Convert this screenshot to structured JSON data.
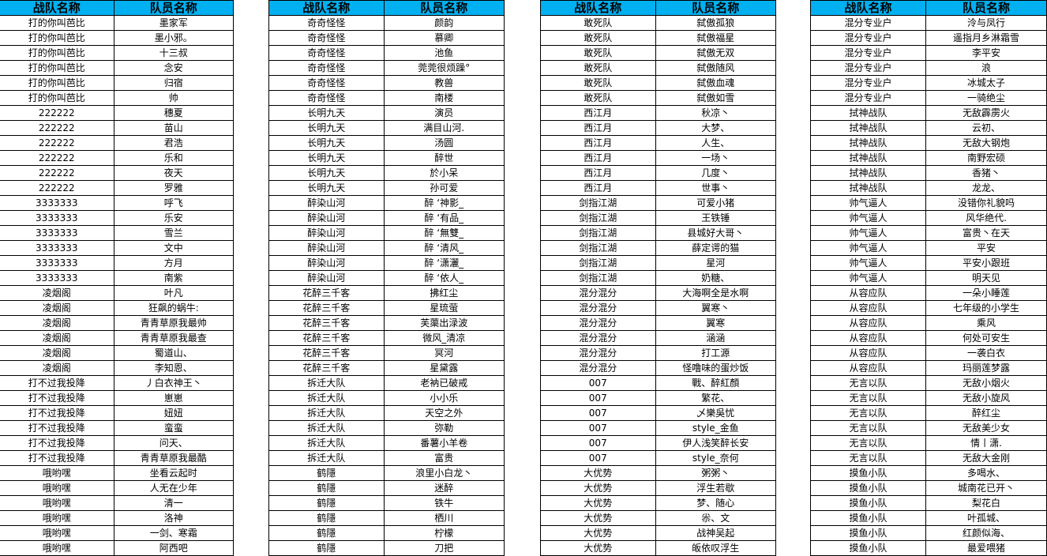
{
  "colors": {
    "header_bg": "#00B0F0",
    "grid": "#000000"
  },
  "headers": {
    "team": "战队名称",
    "member": "队员名称"
  },
  "tables": [
    {
      "rows": [
        [
          "打的你叫芭比",
          "墨家军"
        ],
        [
          "打的你叫芭比",
          "墨小邪。"
        ],
        [
          "打的你叫芭比",
          "十三叔"
        ],
        [
          "打的你叫芭比",
          "念安"
        ],
        [
          "打的你叫芭比",
          "归宿"
        ],
        [
          "打的你叫芭比",
          "帅"
        ],
        [
          "222222",
          "穗夏"
        ],
        [
          "222222",
          "苗山"
        ],
        [
          "222222",
          "君浩"
        ],
        [
          "222222",
          "乐和"
        ],
        [
          "222222",
          "夜天"
        ],
        [
          "222222",
          "罗雅"
        ],
        [
          "3333333",
          "呼飞"
        ],
        [
          "3333333",
          "乐安"
        ],
        [
          "3333333",
          "雪兰"
        ],
        [
          "3333333",
          "文中"
        ],
        [
          "3333333",
          "方月"
        ],
        [
          "3333333",
          "南紫"
        ],
        [
          "凌烟阁",
          "叶凡"
        ],
        [
          "凌烟阁",
          "狂飙的蜗牛:"
        ],
        [
          "凌烟阁",
          "青青草原我最帅"
        ],
        [
          "凌烟阁",
          "青青草原我最查"
        ],
        [
          "凌烟阁",
          "蜀道山、"
        ],
        [
          "凌烟阁",
          "李知恩、"
        ],
        [
          "打不过我投降",
          "丿白衣神王丶"
        ],
        [
          "打不过我投降",
          "崽崽"
        ],
        [
          "打不过我投降",
          "妞妞"
        ],
        [
          "打不过我投降",
          "蛮蛮"
        ],
        [
          "打不过我投降",
          "问天、"
        ],
        [
          "打不过我投降",
          "青青草原我最酷"
        ],
        [
          "哦哟嘿",
          "坐看云起时"
        ],
        [
          "哦哟嘿",
          "人无在少年"
        ],
        [
          "哦哟嘿",
          "清一"
        ],
        [
          "哦哟嘿",
          "洛神"
        ],
        [
          "哦哟嘿",
          "一剑、寒霜"
        ],
        [
          "哦哟嘿",
          "阿西吧"
        ]
      ]
    },
    {
      "rows": [
        [
          "奇奇怪怪",
          "颜韵"
        ],
        [
          "奇奇怪怪",
          "慕卿"
        ],
        [
          "奇奇怪怪",
          "池鱼"
        ],
        [
          "奇奇怪怪",
          "莞莞很烦躁°"
        ],
        [
          "奇奇怪怪",
          "教兽"
        ],
        [
          "奇奇怪怪",
          "南楼"
        ],
        [
          "长明九天",
          "演员"
        ],
        [
          "长明九天",
          "满目山河."
        ],
        [
          "长明九天",
          "汤圆"
        ],
        [
          "长明九天",
          "醉世"
        ],
        [
          "长明九天",
          "於小呆"
        ],
        [
          "长明九天",
          "孙可爱"
        ],
        [
          "醉染山河",
          "醉  ‘神影_"
        ],
        [
          "醉染山河",
          "醉  ‘有品_"
        ],
        [
          "醉染山河",
          "醉  ‘無雙_"
        ],
        [
          "醉染山河",
          "醉  ‘清风_"
        ],
        [
          "醉染山河",
          "醉  ‘潇灑_"
        ],
        [
          "醉染山河",
          "醉  ‘依人_"
        ],
        [
          "花醉三千客",
          "拂红尘"
        ],
        [
          "花醉三千客",
          "星琉萤"
        ],
        [
          "花醉三千客",
          "芙蕖出渌波"
        ],
        [
          "花醉三千客",
          "微风_清凉"
        ],
        [
          "花醉三千客",
          "冥河"
        ],
        [
          "花醉三千客",
          "星黛露"
        ],
        [
          "拆迁大队",
          "老衲已破戒"
        ],
        [
          "拆迁大队",
          "小小乐"
        ],
        [
          "拆迁大队",
          "天空之外"
        ],
        [
          "拆迁大队",
          "弥勒"
        ],
        [
          "拆迁大队",
          "番薯小羊卷"
        ],
        [
          "拆迁大队",
          "富贵"
        ],
        [
          "鹤隱",
          "浪里小白龙丶"
        ],
        [
          "鹤隱",
          "迷醉"
        ],
        [
          "鹤隱",
          "铁牛"
        ],
        [
          "鹤隱",
          "栖川"
        ],
        [
          "鹤隱",
          "柠檬"
        ],
        [
          "鹤隱",
          "刀把"
        ]
      ]
    },
    {
      "rows": [
        [
          "敢死队",
          "弑傲孤狼"
        ],
        [
          "敢死队",
          "弑傲福星"
        ],
        [
          "敢死队",
          "弑傲无双"
        ],
        [
          "敢死队",
          "弑傲随风"
        ],
        [
          "敢死队",
          "弑傲血魂"
        ],
        [
          "敢死队",
          "弑傲如雪"
        ],
        [
          "西江月",
          "秋凉丶"
        ],
        [
          "西江月",
          "大梦、"
        ],
        [
          "西江月",
          "人生、"
        ],
        [
          "西江月",
          "一场丶"
        ],
        [
          "西江月",
          "几度丶"
        ],
        [
          "西江月",
          "世事丶"
        ],
        [
          "剑指江湖",
          "可爱小猪"
        ],
        [
          "剑指江湖",
          "王铁锤"
        ],
        [
          "剑指江湖",
          "县城好大哥丶"
        ],
        [
          "剑指江湖",
          "薛定谔的猫"
        ],
        [
          "剑指江湖",
          "星河"
        ],
        [
          "剑指江湖",
          "奶糖、"
        ],
        [
          "混分混分",
          "大海啊全是水啊"
        ],
        [
          "混分混分",
          "翼寒丶"
        ],
        [
          "混分混分",
          "翼寒"
        ],
        [
          "混分混分",
          "涵涵"
        ],
        [
          "混分混分",
          "打工源"
        ],
        [
          "混分混分",
          "怪噜味的蛋炒饭"
        ],
        [
          "007",
          "戰、醉紅顏"
        ],
        [
          "007",
          "繁花、"
        ],
        [
          "007",
          "乄樂吳忧"
        ],
        [
          "007",
          "style_金鱼"
        ],
        [
          "007",
          "伊人浅笑醉长安"
        ],
        [
          "007",
          "style_奈何"
        ],
        [
          "大优势",
          "粥粥丶"
        ],
        [
          "大优势",
          "浮生若歇"
        ],
        [
          "大优势",
          "梦、随心"
        ],
        [
          "大优势",
          "尜、文"
        ],
        [
          "大优势",
          "战神吴起"
        ],
        [
          "大优势",
          "皈依叹浮生"
        ]
      ]
    },
    {
      "rows": [
        [
          "混分专业户",
          "泠与凤行"
        ],
        [
          "混分专业户",
          "遥指月乡淋霜雪"
        ],
        [
          "混分专业户",
          "李平安"
        ],
        [
          "混分专业户",
          "浪"
        ],
        [
          "混分专业户",
          "冰城太子"
        ],
        [
          "混分专业户",
          "一骑绝尘"
        ],
        [
          "拭神战队",
          "无敌霹雳火"
        ],
        [
          "拭神战队",
          "云初、"
        ],
        [
          "拭神战队",
          "无敌大钢炮"
        ],
        [
          "拭神战队",
          "南野宏硕"
        ],
        [
          "拭神战队",
          "香猪丶"
        ],
        [
          "拭神战队",
          "龙龙、"
        ],
        [
          "帅气逼人",
          "没错你礼貌吗"
        ],
        [
          "帅气逼人",
          "风华绝代."
        ],
        [
          "帅气逼人",
          "富贵丶在天"
        ],
        [
          "帅气逼人",
          "平安"
        ],
        [
          "帅气逼人",
          "平安小跟班"
        ],
        [
          "帅气逼人",
          "明天见"
        ],
        [
          "从容应队",
          "一朵小睡莲"
        ],
        [
          "从容应队",
          "七年级的小学生"
        ],
        [
          "从容应队",
          "乘风"
        ],
        [
          "从容应队",
          "何处可安生"
        ],
        [
          "从容应队",
          "一袭白衣"
        ],
        [
          "从容应队",
          "玛丽莲梦露"
        ],
        [
          "无言以队",
          "无敌小烟火"
        ],
        [
          "无言以队",
          "无敌小旋风"
        ],
        [
          "无言以队",
          "醉红尘"
        ],
        [
          "无言以队",
          "无敌美少女"
        ],
        [
          "无言以队",
          "情丨潇."
        ],
        [
          "无言以队",
          "无敌大金刚"
        ],
        [
          "摸鱼小队",
          "多喝水、"
        ],
        [
          "摸鱼小队",
          "城南花已开丶"
        ],
        [
          "摸鱼小队",
          "梨花白"
        ],
        [
          "摸鱼小队",
          "叶孤城、"
        ],
        [
          "摸鱼小队",
          "红颜似海、"
        ],
        [
          "摸鱼小队",
          "最爱喂猪"
        ]
      ]
    }
  ]
}
